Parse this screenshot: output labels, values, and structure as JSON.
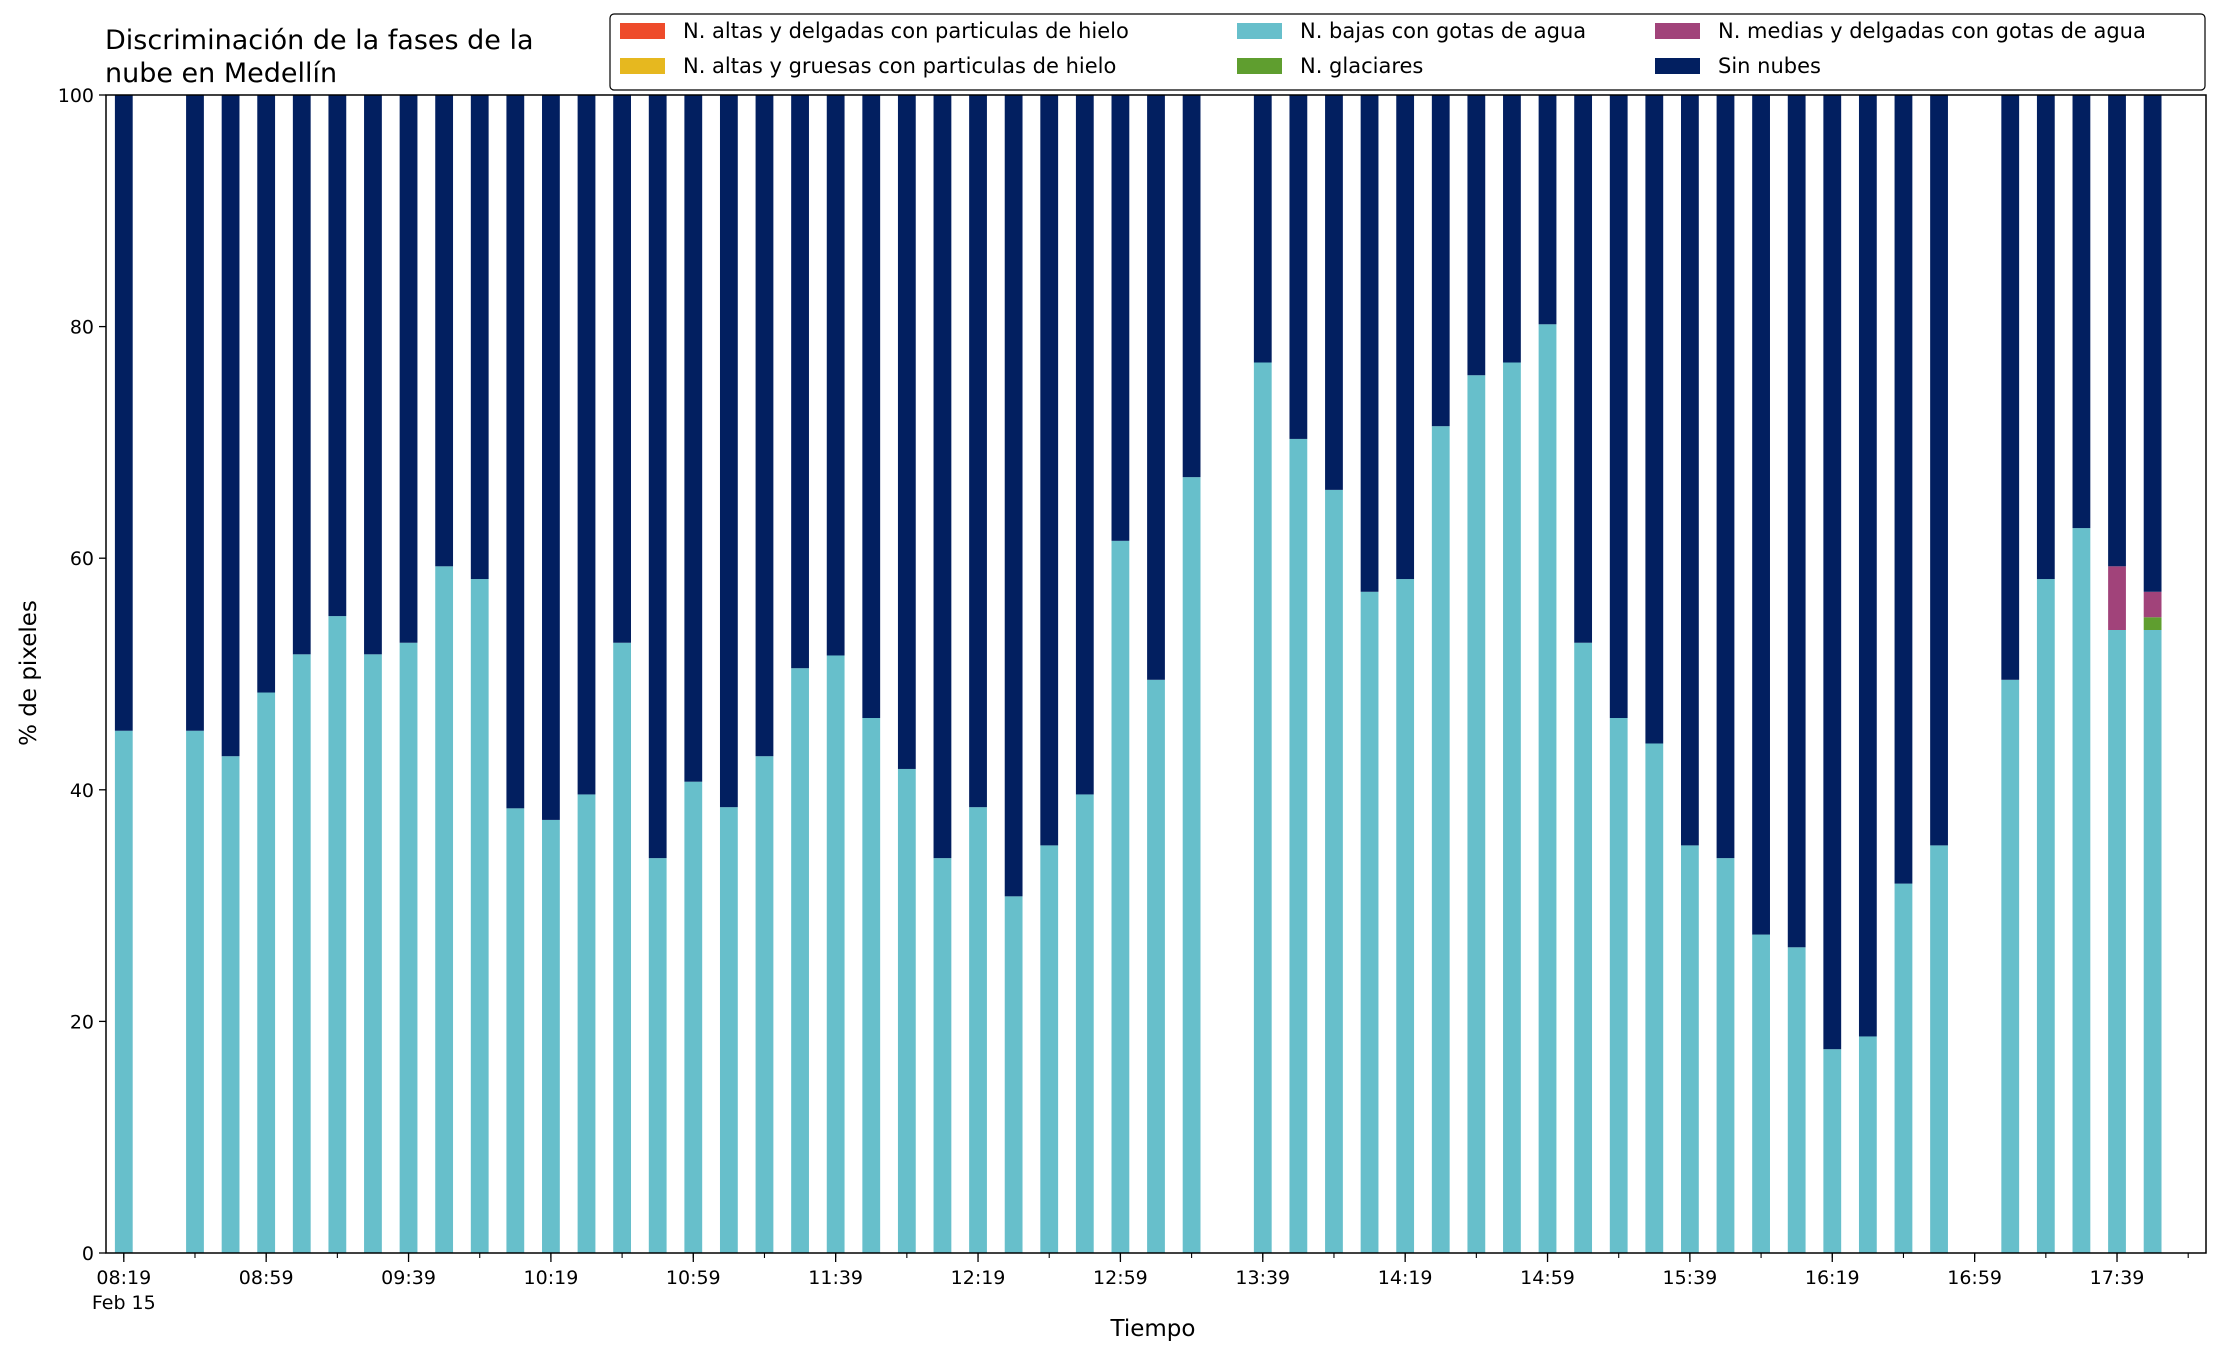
{
  "chart_data": {
    "type": "bar",
    "stacked": true,
    "title_lines": [
      "Discriminación de la fases de la",
      "nube en Medellín"
    ],
    "xlabel": "Tiempo",
    "ylabel": "% de pixeles",
    "ylim": [
      0,
      100
    ],
    "yticks": [
      "0",
      "20",
      "40",
      "60",
      "80",
      "100"
    ],
    "xlim": [
      "08:14",
      "18:04"
    ],
    "bar_interval_minutes": 10,
    "x_major_ticks": [
      "08:19",
      "08:59",
      "09:39",
      "10:19",
      "10:59",
      "11:39",
      "12:19",
      "12:59",
      "13:39",
      "14:19",
      "14:59",
      "15:39",
      "16:19",
      "16:59",
      "17:39"
    ],
    "x_first_tick_sublabel": "Feb 15",
    "grid": false,
    "legend_position": "top-right",
    "legend": [
      {
        "name": "N. altas y delgadas con particulas de hielo",
        "color": "#ee4b2b"
      },
      {
        "name": "N. altas y gruesas con particulas de hielo",
        "color": "#e6b81f"
      },
      {
        "name": "N. bajas con gotas de agua",
        "color": "#67bfcb"
      },
      {
        "name": "N. glaciares",
        "color": "#5f9e2f"
      },
      {
        "name": "N. medias y delgadas con gotas de agua",
        "color": "#a1437a"
      },
      {
        "name": "Sin nubes",
        "color": "#021f60"
      }
    ],
    "x": [
      "08:19",
      "08:39",
      "08:49",
      "08:59",
      "09:09",
      "09:19",
      "09:29",
      "09:39",
      "09:49",
      "09:59",
      "10:09",
      "10:19",
      "10:29",
      "10:39",
      "10:49",
      "10:59",
      "11:09",
      "11:19",
      "11:29",
      "11:39",
      "11:49",
      "11:59",
      "12:09",
      "12:19",
      "12:29",
      "12:39",
      "12:49",
      "12:59",
      "13:09",
      "13:19",
      "13:39",
      "13:49",
      "13:59",
      "14:09",
      "14:19",
      "14:29",
      "14:39",
      "14:49",
      "14:59",
      "15:09",
      "15:19",
      "15:29",
      "15:39",
      "15:49",
      "15:59",
      "16:09",
      "16:19",
      "16:29",
      "16:39",
      "16:49",
      "17:09",
      "17:19",
      "17:29",
      "17:39",
      "17:49"
    ],
    "series": [
      {
        "name": "N. altas y delgadas con particulas de hielo",
        "color": "#ee4b2b",
        "values": [
          0,
          0,
          0,
          0,
          0,
          0,
          0,
          0,
          0,
          0,
          0,
          0,
          0,
          0,
          0,
          0,
          0,
          0,
          0,
          0,
          0,
          0,
          0,
          0,
          0,
          0,
          0,
          0,
          0,
          0,
          0,
          0,
          0,
          0,
          0,
          0,
          0,
          0,
          0,
          0,
          0,
          0,
          0,
          0,
          0,
          0,
          0,
          0,
          0,
          0,
          0,
          0,
          0,
          0,
          0
        ]
      },
      {
        "name": "N. altas y gruesas con particulas de hielo",
        "color": "#e6b81f",
        "values": [
          0,
          0,
          0,
          0,
          0,
          0,
          0,
          0,
          0,
          0,
          0,
          0,
          0,
          0,
          0,
          0,
          0,
          0,
          0,
          0,
          0,
          0,
          0,
          0,
          0,
          0,
          0,
          0,
          0,
          0,
          0,
          0,
          0,
          0,
          0,
          0,
          0,
          0,
          0,
          0,
          0,
          0,
          0,
          0,
          0,
          0,
          0,
          0,
          0,
          0,
          0,
          0,
          0,
          0,
          0
        ]
      },
      {
        "name": "N. bajas con gotas de agua",
        "color": "#67bfcb",
        "values": [
          45.1,
          45.1,
          42.9,
          48.4,
          51.7,
          55.0,
          51.7,
          52.7,
          59.3,
          58.2,
          38.4,
          37.4,
          39.6,
          52.7,
          34.1,
          40.7,
          38.5,
          42.9,
          50.5,
          51.6,
          46.2,
          41.8,
          34.1,
          38.5,
          30.8,
          35.2,
          39.6,
          61.5,
          49.5,
          67.0,
          76.9,
          70.3,
          65.9,
          57.1,
          58.2,
          71.4,
          75.8,
          76.9,
          80.2,
          52.7,
          46.2,
          44.0,
          35.2,
          34.1,
          27.5,
          26.4,
          17.6,
          18.7,
          31.9,
          35.2,
          49.5,
          58.2,
          62.6,
          53.8,
          53.8
        ]
      },
      {
        "name": "N. glaciares",
        "color": "#5f9e2f",
        "values": [
          0,
          0,
          0,
          0,
          0,
          0,
          0,
          0,
          0,
          0,
          0,
          0,
          0,
          0,
          0,
          0,
          0,
          0,
          0,
          0,
          0,
          0,
          0,
          0,
          0,
          0,
          0,
          0,
          0,
          0,
          0,
          0,
          0,
          0,
          0,
          0,
          0,
          0,
          0,
          0,
          0,
          0,
          0,
          0,
          0,
          0,
          0,
          0,
          0,
          0,
          0,
          0,
          0,
          0,
          1.1
        ]
      },
      {
        "name": "N. medias y delgadas con gotas de agua",
        "color": "#a1437a",
        "values": [
          0,
          0,
          0,
          0,
          0,
          0,
          0,
          0,
          0,
          0,
          0,
          0,
          0,
          0,
          0,
          0,
          0,
          0,
          0,
          0,
          0,
          0,
          0,
          0,
          0,
          0,
          0,
          0,
          0,
          0,
          0,
          0,
          0,
          0,
          0,
          0,
          0,
          0,
          0,
          0,
          0,
          0,
          0,
          0,
          0,
          0,
          0,
          0,
          0,
          0,
          0,
          0,
          0,
          5.5,
          2.2
        ]
      },
      {
        "name": "Sin nubes",
        "color": "#021f60",
        "values": [
          54.9,
          54.9,
          57.1,
          51.6,
          48.3,
          45.0,
          48.3,
          47.3,
          40.7,
          41.8,
          61.6,
          62.6,
          60.4,
          47.3,
          65.9,
          59.3,
          61.5,
          57.1,
          49.5,
          48.4,
          53.8,
          58.2,
          65.9,
          61.5,
          69.2,
          64.8,
          60.4,
          38.5,
          50.5,
          33.0,
          23.1,
          29.7,
          34.1,
          42.9,
          41.8,
          28.6,
          24.2,
          23.1,
          19.8,
          47.3,
          53.8,
          56.0,
          64.8,
          65.9,
          72.5,
          73.6,
          82.4,
          81.3,
          68.1,
          64.8,
          50.5,
          41.8,
          37.4,
          40.7,
          42.9
        ]
      }
    ]
  }
}
